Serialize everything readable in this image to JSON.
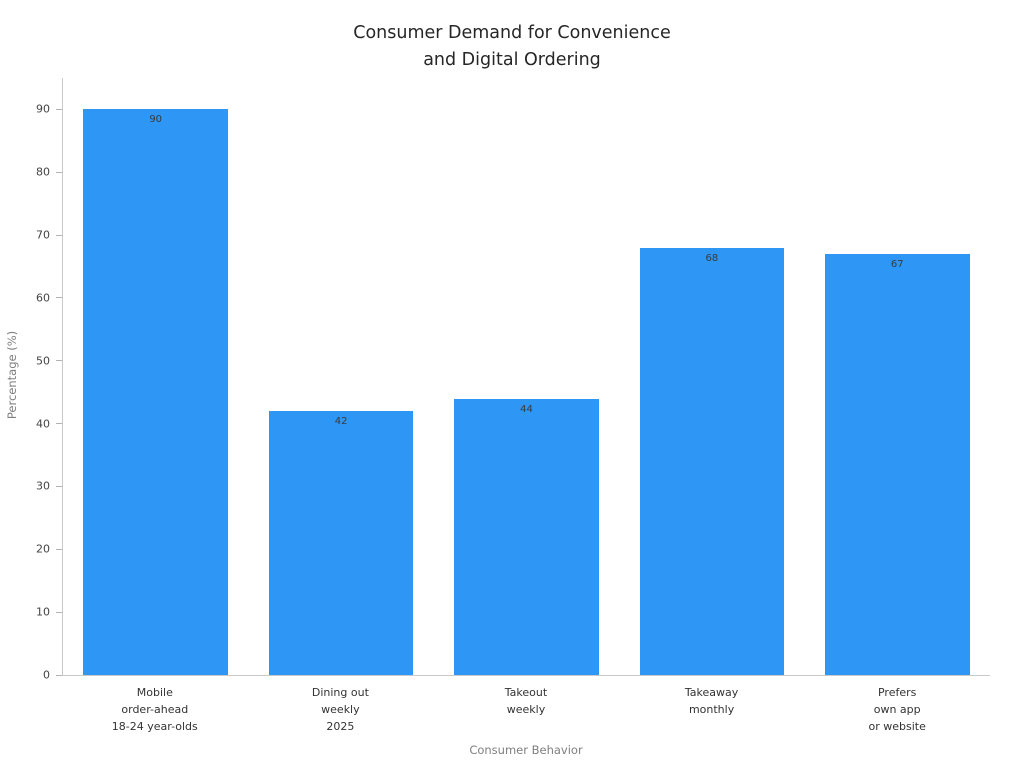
{
  "chart_data": {
    "type": "bar",
    "title": "Consumer Demand for Convenience and Digital Ordering",
    "title_lines": [
      "Consumer Demand for Convenience",
      "and Digital Ordering"
    ],
    "categories": [
      [
        "Mobile",
        "order-ahead",
        "18-24 year-olds"
      ],
      [
        "Dining out",
        "weekly",
        "2025"
      ],
      [
        "Takeout",
        "weekly"
      ],
      [
        "Takeaway",
        "monthly"
      ],
      [
        "Prefers",
        "own app",
        "or website"
      ]
    ],
    "values": [
      90,
      42,
      44,
      68,
      67
    ],
    "xlabel": "Consumer Behavior",
    "ylabel": "Percentage (%)",
    "ylim": [
      0,
      95
    ],
    "yticks": [
      0,
      10,
      20,
      30,
      40,
      50,
      60,
      70,
      80,
      90
    ],
    "bar_color": "#2E96F5",
    "value_label_color": "#3a3a3a",
    "grid": false,
    "legend": "none",
    "value_labels": true
  }
}
